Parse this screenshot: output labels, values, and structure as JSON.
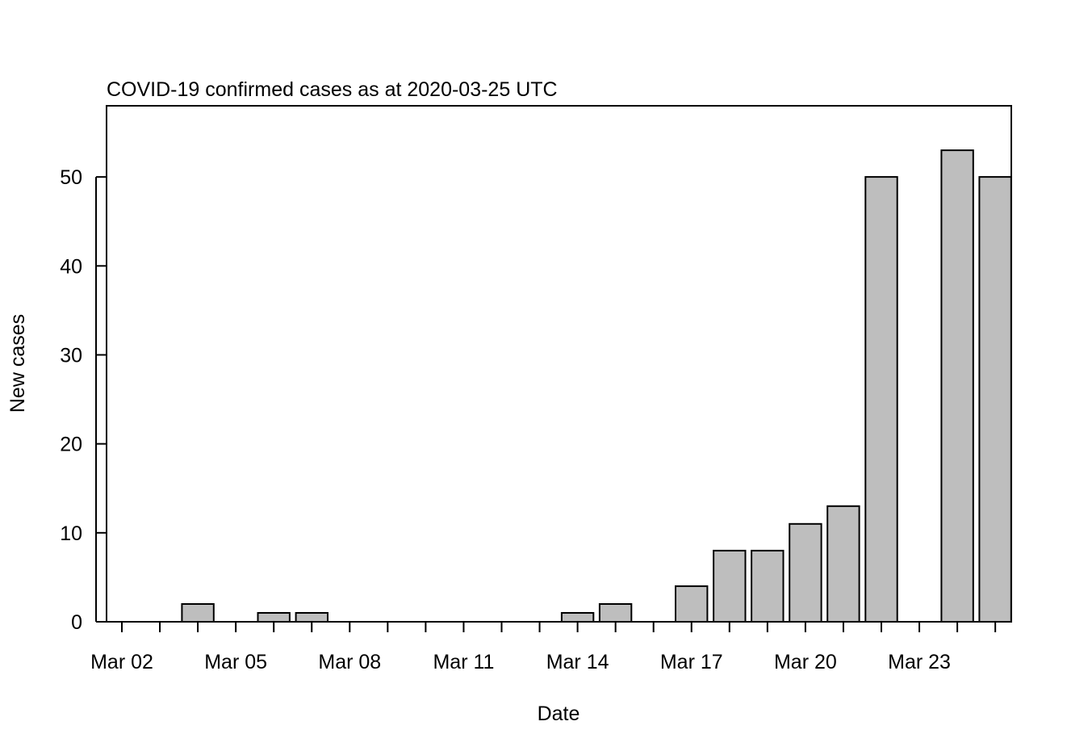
{
  "chart_data": {
    "type": "bar",
    "title": "COVID-19 confirmed cases as at 2020-03-25 UTC",
    "xlabel": "Date",
    "ylabel": "New cases",
    "dates": [
      "2020-03-02",
      "2020-03-03",
      "2020-03-04",
      "2020-03-05",
      "2020-03-06",
      "2020-03-07",
      "2020-03-08",
      "2020-03-09",
      "2020-03-10",
      "2020-03-11",
      "2020-03-12",
      "2020-03-13",
      "2020-03-14",
      "2020-03-15",
      "2020-03-16",
      "2020-03-17",
      "2020-03-18",
      "2020-03-19",
      "2020-03-20",
      "2020-03-21",
      "2020-03-22",
      "2020-03-23",
      "2020-03-24",
      "2020-03-25"
    ],
    "values": [
      0,
      0,
      2,
      0,
      1,
      1,
      0,
      0,
      0,
      0,
      0,
      0,
      1,
      2,
      0,
      4,
      8,
      8,
      11,
      13,
      50,
      0,
      53,
      50
    ],
    "x_tick_labels": [
      "Mar 02",
      "Mar 05",
      "Mar 08",
      "Mar 11",
      "Mar 14",
      "Mar 17",
      "Mar 20",
      "Mar 23"
    ],
    "x_tick_label_dates": [
      "2020-03-02",
      "2020-03-05",
      "2020-03-08",
      "2020-03-11",
      "2020-03-14",
      "2020-03-17",
      "2020-03-20",
      "2020-03-23"
    ],
    "y_ticks": [
      0,
      10,
      20,
      30,
      40,
      50
    ],
    "ylim": [
      0,
      58
    ],
    "bar_color": "#bebebe",
    "grid": false
  }
}
